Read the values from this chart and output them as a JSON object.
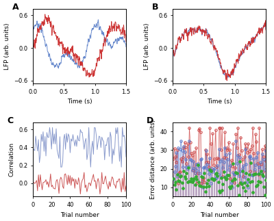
{
  "panel_A": {
    "title": "A",
    "xlabel": "Time (s)",
    "ylabel": "LFP (arb. units)",
    "xlim": [
      0,
      1.5
    ],
    "ylim": [
      -0.65,
      0.72
    ],
    "yticks": [
      -0.6,
      0,
      0.6
    ],
    "xticks": [
      0,
      0.5,
      1.0,
      1.5
    ],
    "blue_color": "#6688cc",
    "red_color": "#cc3333"
  },
  "panel_B": {
    "title": "B",
    "xlabel": "Time (s)",
    "ylabel": "LFP (arb. units)",
    "xlim": [
      0,
      1.5
    ],
    "ylim": [
      -0.65,
      0.72
    ],
    "yticks": [
      -0.6,
      0,
      0.6
    ],
    "xticks": [
      0,
      0.5,
      1.0,
      1.5
    ],
    "blue_color": "#6688cc",
    "red_color": "#cc3333"
  },
  "panel_C": {
    "title": "C",
    "xlabel": "Trial number",
    "ylabel": "Correlation",
    "xlim": [
      0,
      100
    ],
    "ylim": [
      -0.15,
      0.68
    ],
    "yticks": [
      0,
      0.2,
      0.4,
      0.6
    ],
    "xticks": [
      0,
      20,
      40,
      60,
      80,
      100
    ],
    "blue_color": "#8899cc",
    "red_color": "#cc5555"
  },
  "panel_D": {
    "title": "D",
    "xlabel": "Trial number",
    "ylabel": "Error distance (arb. units)",
    "xlim": [
      0,
      100
    ],
    "ylim": [
      5,
      45
    ],
    "yticks": [
      10,
      20,
      30,
      40
    ],
    "xticks": [
      0,
      20,
      40,
      60,
      80,
      100
    ],
    "red_color": "#cc4444",
    "blue_color": "#5577cc",
    "green_color": "#33aa33"
  },
  "background_color": "#ffffff"
}
